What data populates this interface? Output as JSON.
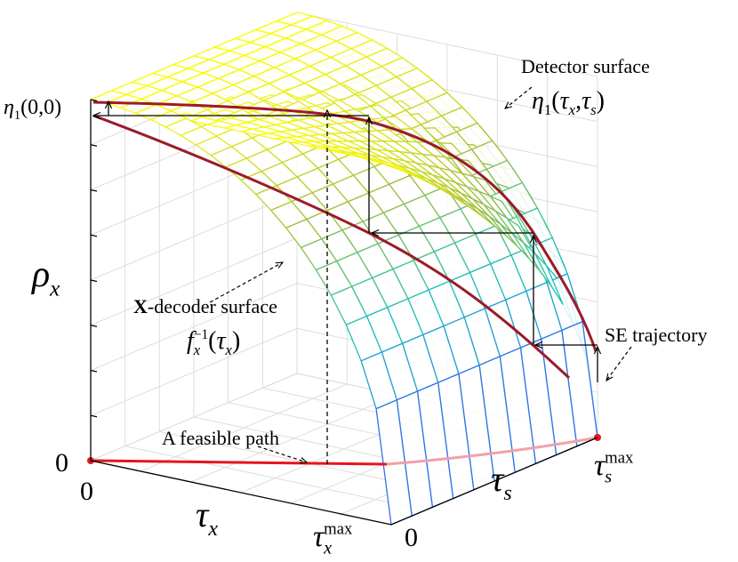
{
  "axes": {
    "vertical": [
      {
        "t": "ρ",
        "sub": "x"
      }
    ],
    "tau_x": [
      {
        "t": "τ",
        "sub": "x"
      }
    ],
    "tau_s": [
      {
        "t": "τ",
        "sub": "s"
      }
    ]
  },
  "ticks": {
    "vertical_zero": "0",
    "vertical_top": [
      {
        "t": "η",
        "sub": "1"
      },
      {
        "t": "(0,0)"
      }
    ],
    "tau_x_zero": "0",
    "tau_x_max": [
      {
        "t": "τ",
        "sub": "x",
        "sup": "max"
      }
    ],
    "tau_s_zero": "0",
    "tau_s_max": [
      {
        "t": "τ",
        "sub": "s",
        "sup": "max"
      }
    ]
  },
  "annotations": {
    "detector": {
      "title": "Detector surface",
      "formula": [
        {
          "t": "η",
          "sub": "1"
        },
        {
          "t": "("
        },
        {
          "t": "τ",
          "sub": "x"
        },
        {
          "t": ","
        },
        {
          "t": "τ",
          "sub": "s"
        },
        {
          "t": ")"
        }
      ]
    },
    "decoder": {
      "title": [
        {
          "t": "X",
          "bold": true
        },
        {
          "t": "-decoder surface"
        }
      ],
      "formula": [
        {
          "t": "f",
          "sub": "x",
          "sup": "−1"
        },
        {
          "t": "("
        },
        {
          "t": "τ",
          "sub": "x"
        },
        {
          "t": ")"
        }
      ]
    },
    "trajectory": "SE trajectory",
    "path": "A feasible path"
  }
}
